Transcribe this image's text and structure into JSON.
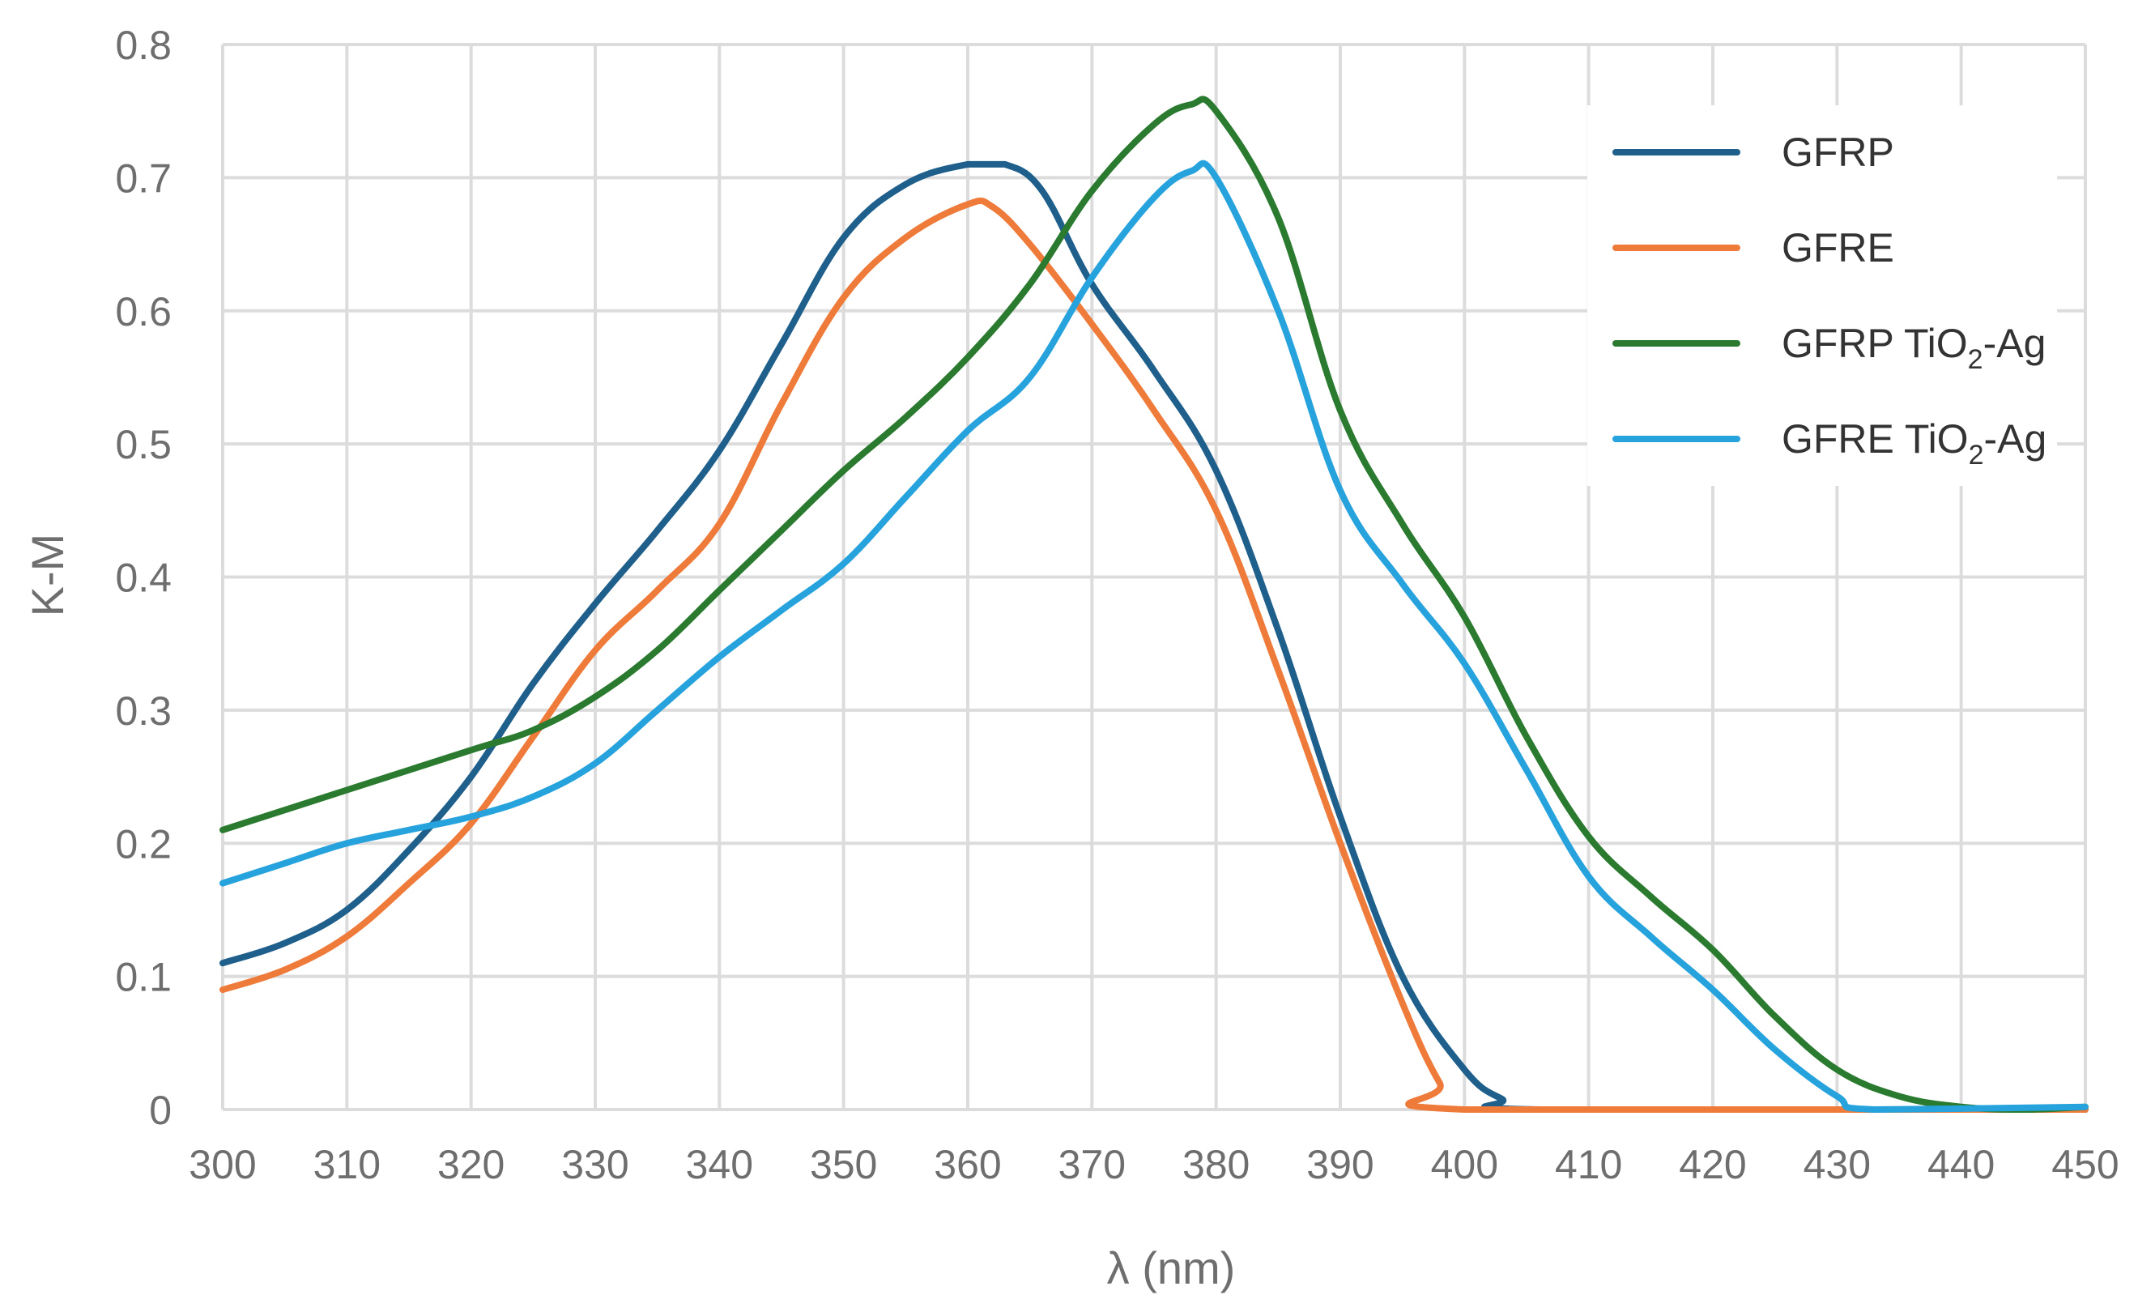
{
  "chart_data": {
    "type": "line",
    "title": "",
    "xlabel": "λ (nm)",
    "ylabel": "K-M",
    "xlim": [
      300,
      450
    ],
    "ylim": [
      0,
      0.8
    ],
    "x_ticks": [
      "300",
      "310",
      "320",
      "330",
      "340",
      "350",
      "360",
      "370",
      "380",
      "390",
      "400",
      "410",
      "420",
      "430",
      "440",
      "450"
    ],
    "y_ticks": [
      "0",
      "0.1",
      "0.2",
      "0.3",
      "0.4",
      "0.5",
      "0.6",
      "0.7",
      "0.8"
    ],
    "grid": true,
    "legend_position": "top-right",
    "series": [
      {
        "name": "GFRP",
        "legend_main": "GFRP",
        "legend_sub": "",
        "legend_suffix": "",
        "color": "#1f5f8b",
        "points": [
          [
            300,
            0.11
          ],
          [
            305,
            0.125
          ],
          [
            310,
            0.15
          ],
          [
            315,
            0.195
          ],
          [
            320,
            0.25
          ],
          [
            325,
            0.32
          ],
          [
            330,
            0.38
          ],
          [
            335,
            0.435
          ],
          [
            340,
            0.495
          ],
          [
            345,
            0.575
          ],
          [
            350,
            0.655
          ],
          [
            355,
            0.695
          ],
          [
            360,
            0.71
          ],
          [
            363,
            0.71
          ],
          [
            366,
            0.69
          ],
          [
            370,
            0.62
          ],
          [
            375,
            0.555
          ],
          [
            380,
            0.48
          ],
          [
            385,
            0.36
          ],
          [
            390,
            0.22
          ],
          [
            395,
            0.1
          ],
          [
            400,
            0.03
          ],
          [
            403,
            0.008
          ],
          [
            406,
            0.0
          ],
          [
            450,
            0.0
          ]
        ]
      },
      {
        "name": "GFRE",
        "legend_main": "GFRE",
        "legend_sub": "",
        "legend_suffix": "",
        "color": "#ef7b3b",
        "points": [
          [
            300,
            0.09
          ],
          [
            305,
            0.105
          ],
          [
            310,
            0.13
          ],
          [
            315,
            0.17
          ],
          [
            320,
            0.215
          ],
          [
            325,
            0.28
          ],
          [
            330,
            0.345
          ],
          [
            335,
            0.39
          ],
          [
            340,
            0.44
          ],
          [
            345,
            0.53
          ],
          [
            350,
            0.61
          ],
          [
            355,
            0.655
          ],
          [
            360,
            0.68
          ],
          [
            362,
            0.678
          ],
          [
            365,
            0.65
          ],
          [
            370,
            0.59
          ],
          [
            375,
            0.525
          ],
          [
            380,
            0.45
          ],
          [
            385,
            0.33
          ],
          [
            390,
            0.2
          ],
          [
            395,
            0.08
          ],
          [
            398,
            0.02
          ],
          [
            400,
            0.0
          ],
          [
            450,
            0.0
          ]
        ]
      },
      {
        "name": "GFRP TiO2-Ag",
        "legend_main": "GFRP TiO",
        "legend_sub": "2",
        "legend_suffix": "-Ag",
        "color": "#2a7a2f",
        "points": [
          [
            300,
            0.21
          ],
          [
            310,
            0.24
          ],
          [
            320,
            0.27
          ],
          [
            325,
            0.285
          ],
          [
            330,
            0.31
          ],
          [
            335,
            0.345
          ],
          [
            340,
            0.39
          ],
          [
            345,
            0.435
          ],
          [
            350,
            0.48
          ],
          [
            355,
            0.52
          ],
          [
            360,
            0.565
          ],
          [
            365,
            0.62
          ],
          [
            370,
            0.69
          ],
          [
            375,
            0.74
          ],
          [
            378,
            0.755
          ],
          [
            380,
            0.75
          ],
          [
            385,
            0.67
          ],
          [
            390,
            0.525
          ],
          [
            395,
            0.44
          ],
          [
            400,
            0.37
          ],
          [
            405,
            0.28
          ],
          [
            410,
            0.205
          ],
          [
            415,
            0.16
          ],
          [
            420,
            0.12
          ],
          [
            425,
            0.07
          ],
          [
            430,
            0.03
          ],
          [
            435,
            0.01
          ],
          [
            440,
            0.002
          ],
          [
            445,
            0.0
          ],
          [
            450,
            0.002
          ]
        ]
      },
      {
        "name": "GFRE TiO2-Ag",
        "legend_main": "GFRE TiO",
        "legend_sub": "2",
        "legend_suffix": "-Ag",
        "color": "#26a2dc",
        "points": [
          [
            300,
            0.17
          ],
          [
            305,
            0.185
          ],
          [
            310,
            0.2
          ],
          [
            315,
            0.21
          ],
          [
            320,
            0.22
          ],
          [
            325,
            0.235
          ],
          [
            330,
            0.26
          ],
          [
            335,
            0.3
          ],
          [
            340,
            0.34
          ],
          [
            345,
            0.375
          ],
          [
            350,
            0.41
          ],
          [
            355,
            0.46
          ],
          [
            360,
            0.51
          ],
          [
            365,
            0.55
          ],
          [
            370,
            0.625
          ],
          [
            375,
            0.685
          ],
          [
            378,
            0.705
          ],
          [
            380,
            0.7
          ],
          [
            385,
            0.6
          ],
          [
            390,
            0.465
          ],
          [
            395,
            0.395
          ],
          [
            400,
            0.335
          ],
          [
            405,
            0.255
          ],
          [
            410,
            0.175
          ],
          [
            415,
            0.13
          ],
          [
            420,
            0.09
          ],
          [
            425,
            0.045
          ],
          [
            430,
            0.01
          ],
          [
            433,
            0.0
          ],
          [
            450,
            0.002
          ]
        ]
      }
    ]
  }
}
